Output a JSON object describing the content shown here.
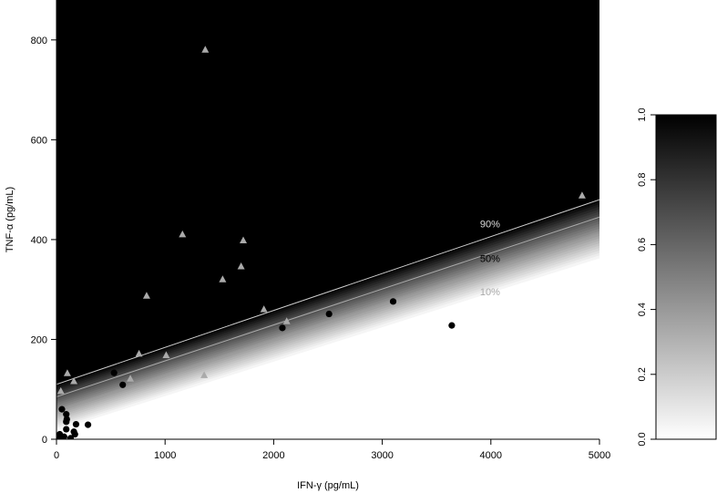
{
  "chart_data": {
    "type": "scatter",
    "xlabel": "IFN-γ  (pg/mL)",
    "ylabel": "TNF-α  (pg/mL)",
    "xlim": [
      0,
      5000
    ],
    "ylim": [
      0,
      880
    ],
    "x_ticks": [
      "0",
      "1000",
      "2000",
      "3000",
      "4000",
      "5000"
    ],
    "x_tick_values": [
      0,
      1000,
      2000,
      3000,
      4000,
      5000
    ],
    "y_ticks": [
      "0",
      "200",
      "400",
      "600",
      "800"
    ],
    "y_tick_values": [
      0,
      200,
      400,
      600,
      800
    ],
    "background": "probability surface, white (0.0) to black (1.0)",
    "contours": [
      {
        "label": "90%",
        "intercept": 110,
        "slope": 0.074,
        "color": "#cccccc",
        "label_x": 3900,
        "label_y": 432
      },
      {
        "label": "50%",
        "intercept": 85,
        "slope": 0.072,
        "color": "#aaaaaa",
        "label_x": 3900,
        "label_y": 362
      },
      {
        "label": "10%",
        "intercept": 58,
        "slope": 0.071,
        "color": "#999999",
        "label_x": 3900,
        "label_y": 296
      }
    ],
    "series": [
      {
        "marker": "triangle",
        "color": "#aaaaaa",
        "points": [
          [
            1370,
            780
          ],
          [
            4840,
            488
          ],
          [
            1160,
            410
          ],
          [
            1720,
            398
          ],
          [
            1700,
            346
          ],
          [
            1530,
            320
          ],
          [
            830,
            287
          ],
          [
            1910,
            260
          ],
          [
            2120,
            236
          ],
          [
            760,
            171
          ],
          [
            1010,
            168
          ],
          [
            680,
            121
          ],
          [
            1360,
            128
          ],
          [
            100,
            132
          ],
          [
            160,
            116
          ],
          [
            40,
            96
          ]
        ]
      },
      {
        "marker": "circle",
        "color": "#000000",
        "points": [
          [
            3640,
            228
          ],
          [
            3100,
            276
          ],
          [
            2510,
            251
          ],
          [
            2080,
            223
          ],
          [
            530,
            133
          ],
          [
            610,
            109
          ],
          [
            50,
            60
          ],
          [
            90,
            50
          ],
          [
            95,
            40
          ],
          [
            90,
            35
          ],
          [
            180,
            30
          ],
          [
            290,
            29
          ],
          [
            90,
            20
          ],
          [
            160,
            15
          ],
          [
            170,
            10
          ],
          [
            30,
            10
          ],
          [
            70,
            5
          ],
          [
            130,
            2
          ],
          [
            20,
            0
          ],
          [
            60,
            0
          ]
        ]
      }
    ],
    "colorbar": {
      "ticks": [
        "0.0",
        "0.2",
        "0.4",
        "0.6",
        "0.8",
        "1.0"
      ],
      "tick_values": [
        0.0,
        0.2,
        0.4,
        0.6,
        0.8,
        1.0
      ],
      "range": [
        0,
        1
      ],
      "low_color": "#ffffff",
      "high_color": "#000000"
    }
  }
}
